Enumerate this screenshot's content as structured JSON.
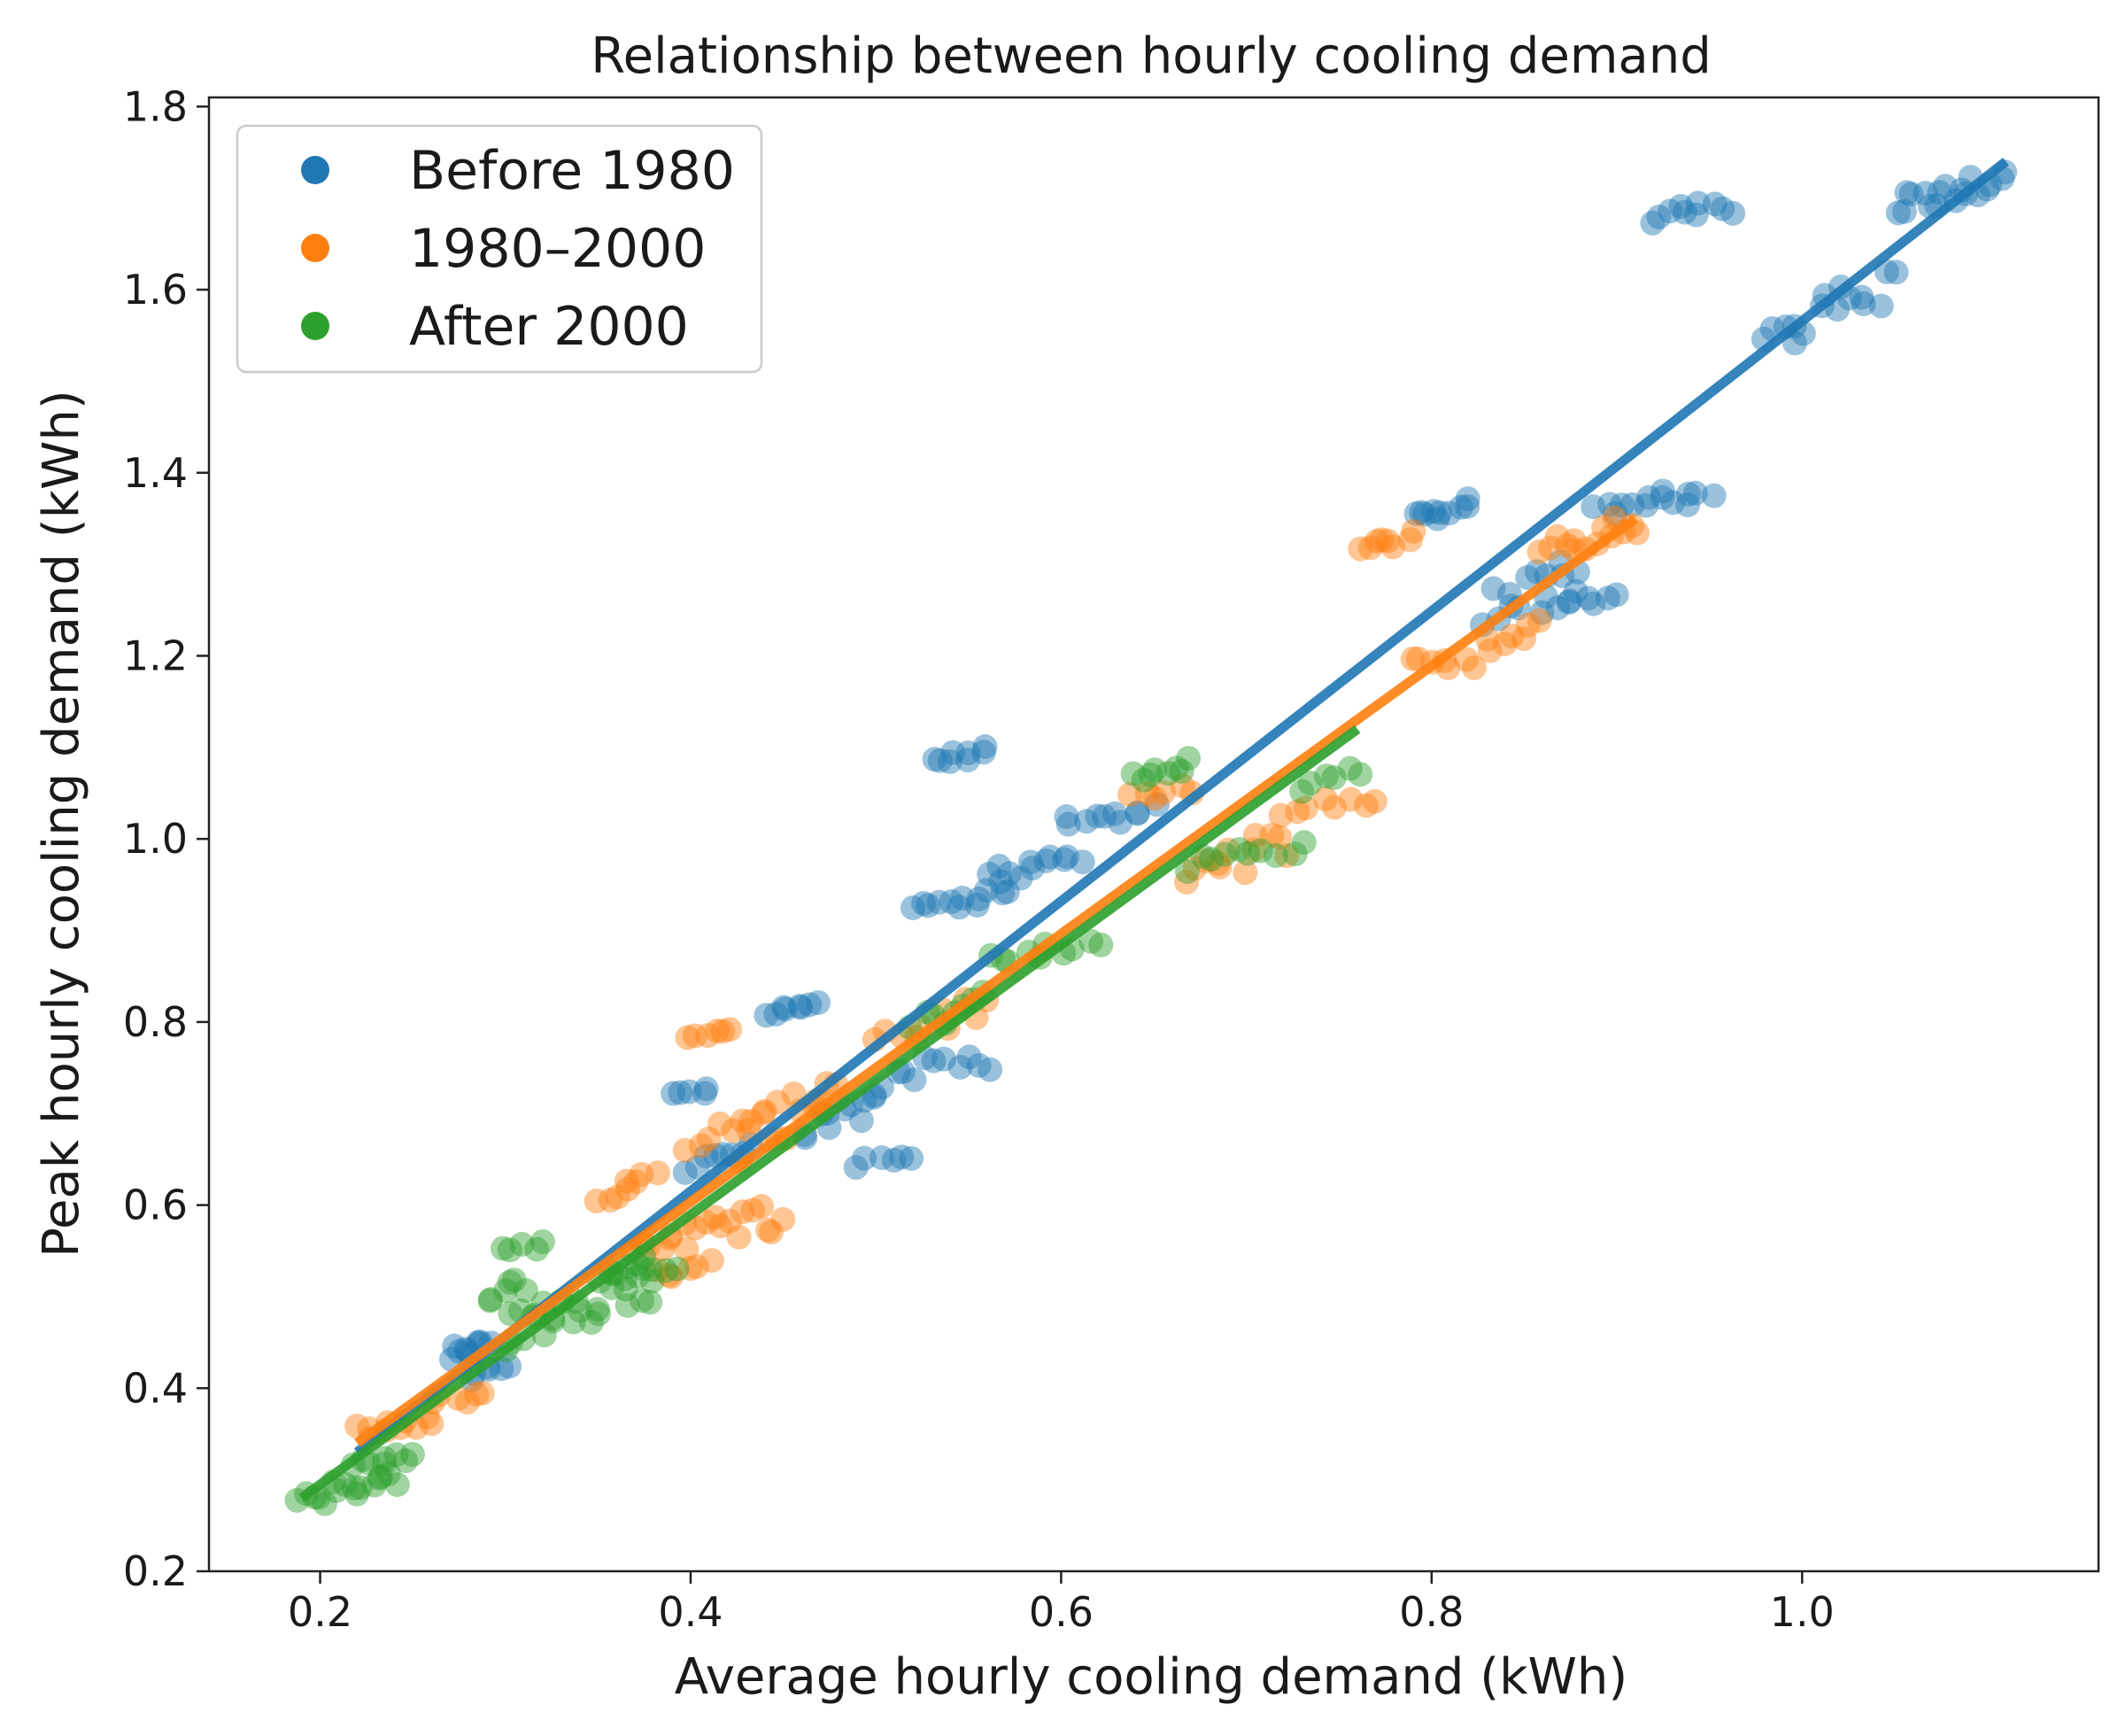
{
  "chart_data": {
    "type": "scatter",
    "title": "Relationship between hourly cooling demand",
    "xlabel": "Average hourly cooling demand (kWh)",
    "ylabel": "Peak hourly cooling demand (kWh)",
    "xlim": [
      0.14,
      1.16
    ],
    "ylim": [
      0.2,
      1.81
    ],
    "xticks": [
      0.2,
      0.4,
      0.6,
      0.8,
      1.0
    ],
    "yticks": [
      0.2,
      0.4,
      0.6,
      0.8,
      1.0,
      1.2,
      1.4,
      1.6,
      1.8
    ],
    "legend_position": "upper-left",
    "series": [
      {
        "name": "Before 1980",
        "color": "#1f77b4",
        "clusters": [
          {
            "x0": 0.27,
            "x1": 0.29,
            "y0": 0.425,
            "y1": 0.46,
            "n": 10
          },
          {
            "x0": 0.28,
            "x1": 0.3,
            "y0": 0.41,
            "y1": 0.43,
            "n": 6
          },
          {
            "x0": 0.39,
            "x1": 0.41,
            "y0": 0.72,
            "y1": 0.73,
            "n": 5
          },
          {
            "x0": 0.4,
            "x1": 0.43,
            "y0": 0.63,
            "y1": 0.68,
            "n": 8
          },
          {
            "x0": 0.44,
            "x1": 0.47,
            "y0": 0.8,
            "y1": 0.825,
            "n": 8
          },
          {
            "x0": 0.46,
            "x1": 0.5,
            "y0": 0.66,
            "y1": 0.73,
            "n": 10
          },
          {
            "x0": 0.49,
            "x1": 0.52,
            "y0": 0.64,
            "y1": 0.66,
            "n": 6
          },
          {
            "x0": 0.5,
            "x1": 0.56,
            "y0": 0.72,
            "y1": 0.78,
            "n": 12
          },
          {
            "x0": 0.52,
            "x1": 0.57,
            "y0": 0.92,
            "y1": 0.945,
            "n": 12
          },
          {
            "x0": 0.53,
            "x1": 0.56,
            "y0": 1.08,
            "y1": 1.1,
            "n": 8
          },
          {
            "x0": 0.56,
            "x1": 0.61,
            "y0": 0.95,
            "y1": 0.99,
            "n": 12
          },
          {
            "x0": 0.6,
            "x1": 0.65,
            "y0": 1.01,
            "y1": 1.04,
            "n": 10
          },
          {
            "x0": 0.79,
            "x1": 0.82,
            "y0": 1.34,
            "y1": 1.375,
            "n": 10
          },
          {
            "x0": 0.83,
            "x1": 0.88,
            "y0": 1.23,
            "y1": 1.32,
            "n": 14
          },
          {
            "x0": 0.86,
            "x1": 0.9,
            "y0": 1.25,
            "y1": 1.27,
            "n": 8
          },
          {
            "x0": 0.89,
            "x1": 0.95,
            "y0": 1.35,
            "y1": 1.385,
            "n": 14
          },
          {
            "x0": 0.92,
            "x1": 0.96,
            "y0": 1.67,
            "y1": 1.7,
            "n": 10
          },
          {
            "x0": 0.98,
            "x1": 1.05,
            "y0": 1.53,
            "y1": 1.63,
            "n": 16
          },
          {
            "x0": 1.05,
            "x1": 1.11,
            "y0": 1.68,
            "y1": 1.73,
            "n": 18
          }
        ],
        "fit_line": {
          "x": [
            0.22,
            1.11
          ],
          "y": [
            0.33,
            1.74
          ]
        }
      },
      {
        "name": "1980–2000",
        "color": "#ff7f0e",
        "clusters": [
          {
            "x0": 0.22,
            "x1": 0.26,
            "y0": 0.34,
            "y1": 0.37,
            "n": 10
          },
          {
            "x0": 0.26,
            "x1": 0.29,
            "y0": 0.38,
            "y1": 0.4,
            "n": 6
          },
          {
            "x0": 0.35,
            "x1": 0.38,
            "y0": 0.6,
            "y1": 0.64,
            "n": 8
          },
          {
            "x0": 0.38,
            "x1": 0.41,
            "y0": 0.52,
            "y1": 0.54,
            "n": 6
          },
          {
            "x0": 0.4,
            "x1": 0.42,
            "y0": 0.78,
            "y1": 0.79,
            "n": 6
          },
          {
            "x0": 0.4,
            "x1": 0.44,
            "y0": 0.66,
            "y1": 0.71,
            "n": 8
          },
          {
            "x0": 0.37,
            "x1": 0.45,
            "y0": 0.54,
            "y1": 0.61,
            "n": 20
          },
          {
            "x0": 0.43,
            "x1": 0.48,
            "y0": 0.65,
            "y1": 0.75,
            "n": 14
          },
          {
            "x0": 0.5,
            "x1": 0.56,
            "y0": 0.77,
            "y1": 0.83,
            "n": 10
          },
          {
            "x0": 0.64,
            "x1": 0.67,
            "y0": 1.04,
            "y1": 1.06,
            "n": 6
          },
          {
            "x0": 0.67,
            "x1": 0.72,
            "y0": 0.95,
            "y1": 1.01,
            "n": 12
          },
          {
            "x0": 0.72,
            "x1": 0.77,
            "y0": 1.02,
            "y1": 1.05,
            "n": 8
          },
          {
            "x0": 0.76,
            "x1": 0.79,
            "y0": 1.31,
            "y1": 1.34,
            "n": 8
          },
          {
            "x0": 0.79,
            "x1": 0.86,
            "y0": 1.17,
            "y1": 1.24,
            "n": 14
          },
          {
            "x0": 0.86,
            "x1": 0.91,
            "y0": 1.3,
            "y1": 1.36,
            "n": 14
          }
        ],
        "fit_line": {
          "x": [
            0.22,
            0.91
          ],
          "y": [
            0.34,
            1.35
          ]
        }
      },
      {
        "name": "After 2000",
        "color": "#2ca02c",
        "clusters": [
          {
            "x0": 0.19,
            "x1": 0.24,
            "y0": 0.27,
            "y1": 0.31,
            "n": 16
          },
          {
            "x0": 0.22,
            "x1": 0.25,
            "y0": 0.31,
            "y1": 0.33,
            "n": 8
          },
          {
            "x0": 0.29,
            "x1": 0.31,
            "y0": 0.49,
            "y1": 0.52,
            "n": 6
          },
          {
            "x0": 0.3,
            "x1": 0.32,
            "y0": 0.55,
            "y1": 0.56,
            "n": 5
          },
          {
            "x0": 0.3,
            "x1": 0.38,
            "y0": 0.44,
            "y1": 0.55,
            "n": 30
          },
          {
            "x0": 0.36,
            "x1": 0.39,
            "y0": 0.52,
            "y1": 0.54,
            "n": 8
          },
          {
            "x0": 0.52,
            "x1": 0.56,
            "y0": 0.79,
            "y1": 0.84,
            "n": 8
          },
          {
            "x0": 0.56,
            "x1": 0.62,
            "y0": 0.86,
            "y1": 0.89,
            "n": 10
          },
          {
            "x0": 0.64,
            "x1": 0.67,
            "y0": 1.06,
            "y1": 1.09,
            "n": 8
          },
          {
            "x0": 0.67,
            "x1": 0.73,
            "y0": 0.96,
            "y1": 1.0,
            "n": 10
          },
          {
            "x0": 0.73,
            "x1": 0.76,
            "y0": 1.05,
            "y1": 1.08,
            "n": 6
          }
        ],
        "fit_line": {
          "x": [
            0.19,
            0.76
          ],
          "y": [
            0.28,
            1.12
          ]
        }
      }
    ]
  }
}
